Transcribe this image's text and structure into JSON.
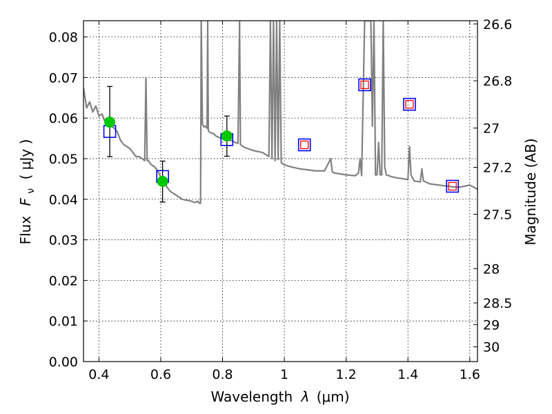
{
  "chart_data": {
    "type": "scatter",
    "x": {
      "label_prefix": "Wavelength",
      "label_symbol": "λ",
      "label_unit": "(μm)",
      "lim": [
        0.35,
        1.625
      ],
      "ticks": [
        0.4,
        0.6,
        0.8,
        1.0,
        1.2,
        1.4,
        1.6
      ],
      "tick_labels": [
        "0.4",
        "0.6",
        "0.8",
        "1",
        "1.2",
        "1.4",
        "1.6"
      ]
    },
    "y": {
      "label_prefix": "Flux",
      "label_symbol": "F",
      "label_sub": "ν",
      "label_unit": "( μJy )",
      "lim": [
        0.0,
        0.084
      ],
      "ticks": [
        0.0,
        0.01,
        0.02,
        0.03,
        0.04,
        0.05,
        0.06,
        0.07,
        0.08
      ],
      "tick_labels": [
        "0.00",
        "0.01",
        "0.02",
        "0.03",
        "0.04",
        "0.05",
        "0.06",
        "0.07",
        "0.08"
      ]
    },
    "y2": {
      "label": "Magnitude (AB)",
      "ticks": [
        26.6,
        26.8,
        27.0,
        27.2,
        27.5,
        28.0,
        28.5,
        29.0,
        30.0
      ],
      "tick_labels": [
        "26.6",
        "26.8",
        "27",
        "27.2",
        "27.5",
        "28",
        "28.5",
        "29",
        "30"
      ]
    },
    "grid": true,
    "colors": {
      "model": "#808080",
      "observed": "#00c800",
      "error_bar": "#000000",
      "model_band": "#0000ff",
      "upper_square": "#ff0000"
    },
    "model_spectrum": {
      "x": [
        0.35,
        0.36,
        0.37,
        0.38,
        0.39,
        0.4,
        0.41,
        0.42,
        0.43,
        0.44,
        0.45,
        0.46,
        0.47,
        0.48,
        0.49,
        0.5,
        0.51,
        0.52,
        0.53,
        0.54,
        0.548,
        0.552,
        0.556,
        0.56,
        0.57,
        0.58,
        0.59,
        0.6,
        0.61,
        0.62,
        0.63,
        0.64,
        0.65,
        0.66,
        0.67,
        0.68,
        0.69,
        0.7,
        0.71,
        0.72,
        0.725,
        0.729,
        0.731,
        0.735,
        0.74,
        0.745,
        0.75,
        0.752,
        0.754,
        0.758,
        0.77,
        0.78,
        0.79,
        0.8,
        0.81,
        0.82,
        0.83,
        0.84,
        0.85,
        0.855,
        0.858,
        0.862,
        0.87,
        0.9,
        0.93,
        0.95,
        0.955,
        0.96,
        0.965,
        0.97,
        0.975,
        0.98,
        0.985,
        0.99,
        1.0,
        1.02,
        1.05,
        1.08,
        1.1,
        1.13,
        1.15,
        1.155,
        1.16,
        1.2,
        1.23,
        1.24,
        1.245,
        1.25,
        1.26,
        1.27,
        1.28,
        1.285,
        1.29,
        1.295,
        1.3,
        1.305,
        1.31,
        1.315,
        1.32,
        1.325,
        1.33,
        1.35,
        1.37,
        1.39,
        1.4,
        1.405,
        1.41,
        1.42,
        1.44,
        1.445,
        1.45,
        1.47,
        1.5,
        1.53,
        1.55,
        1.57,
        1.6,
        1.625
      ],
      "y": [
        0.0675,
        0.0625,
        0.064,
        0.0615,
        0.063,
        0.0605,
        0.061,
        0.059,
        0.0585,
        0.058,
        0.0575,
        0.0565,
        0.0545,
        0.0535,
        0.053,
        0.0525,
        0.0515,
        0.0505,
        0.0505,
        0.05,
        0.0495,
        0.07,
        0.0495,
        0.0495,
        0.0485,
        0.048,
        0.047,
        0.0455,
        0.0445,
        0.043,
        0.042,
        0.0415,
        0.041,
        0.0405,
        0.04,
        0.0398,
        0.0397,
        0.0395,
        0.0392,
        0.0395,
        0.039,
        0.039,
        0.084,
        0.0585,
        0.0578,
        0.058,
        0.0575,
        0.084,
        0.057,
        0.0565,
        0.0562,
        0.0555,
        0.0552,
        0.055,
        0.0548,
        0.0545,
        0.0545,
        0.054,
        0.0538,
        0.084,
        0.0535,
        0.0532,
        0.0528,
        0.052,
        0.0515,
        0.0505,
        0.084,
        0.05,
        0.084,
        0.0495,
        0.084,
        0.0498,
        0.084,
        0.049,
        0.0485,
        0.048,
        0.0475,
        0.0472,
        0.047,
        0.047,
        0.05,
        0.0468,
        0.0465,
        0.046,
        0.0458,
        0.0465,
        0.05,
        0.0458,
        0.084,
        0.084,
        0.084,
        0.058,
        0.084,
        0.046,
        0.046,
        0.054,
        0.046,
        0.046,
        0.084,
        0.048,
        0.046,
        0.0455,
        0.0452,
        0.045,
        0.0448,
        0.053,
        0.046,
        0.0445,
        0.0443,
        0.0475,
        0.0445,
        0.0438,
        0.0435,
        0.0432,
        0.043,
        0.043,
        0.0435,
        0.0425
      ]
    },
    "observed": [
      {
        "x": 0.435,
        "y": 0.059,
        "yerr": [
          0.0505,
          0.0678
        ]
      },
      {
        "x": 0.606,
        "y": 0.0444,
        "yerr": [
          0.0393,
          0.0494
        ]
      },
      {
        "x": 0.814,
        "y": 0.0556,
        "yerr": [
          0.0506,
          0.0605
        ]
      }
    ],
    "model_band_points": [
      {
        "x": 0.435,
        "y": 0.0567,
        "upper": false
      },
      {
        "x": 0.606,
        "y": 0.0456,
        "upper": false
      },
      {
        "x": 0.814,
        "y": 0.0547,
        "upper": false
      },
      {
        "x": 1.065,
        "y": 0.0534,
        "upper": true
      },
      {
        "x": 1.26,
        "y": 0.0682,
        "upper": true
      },
      {
        "x": 1.405,
        "y": 0.0634,
        "upper": true
      },
      {
        "x": 1.544,
        "y": 0.0432,
        "upper": true
      }
    ]
  }
}
